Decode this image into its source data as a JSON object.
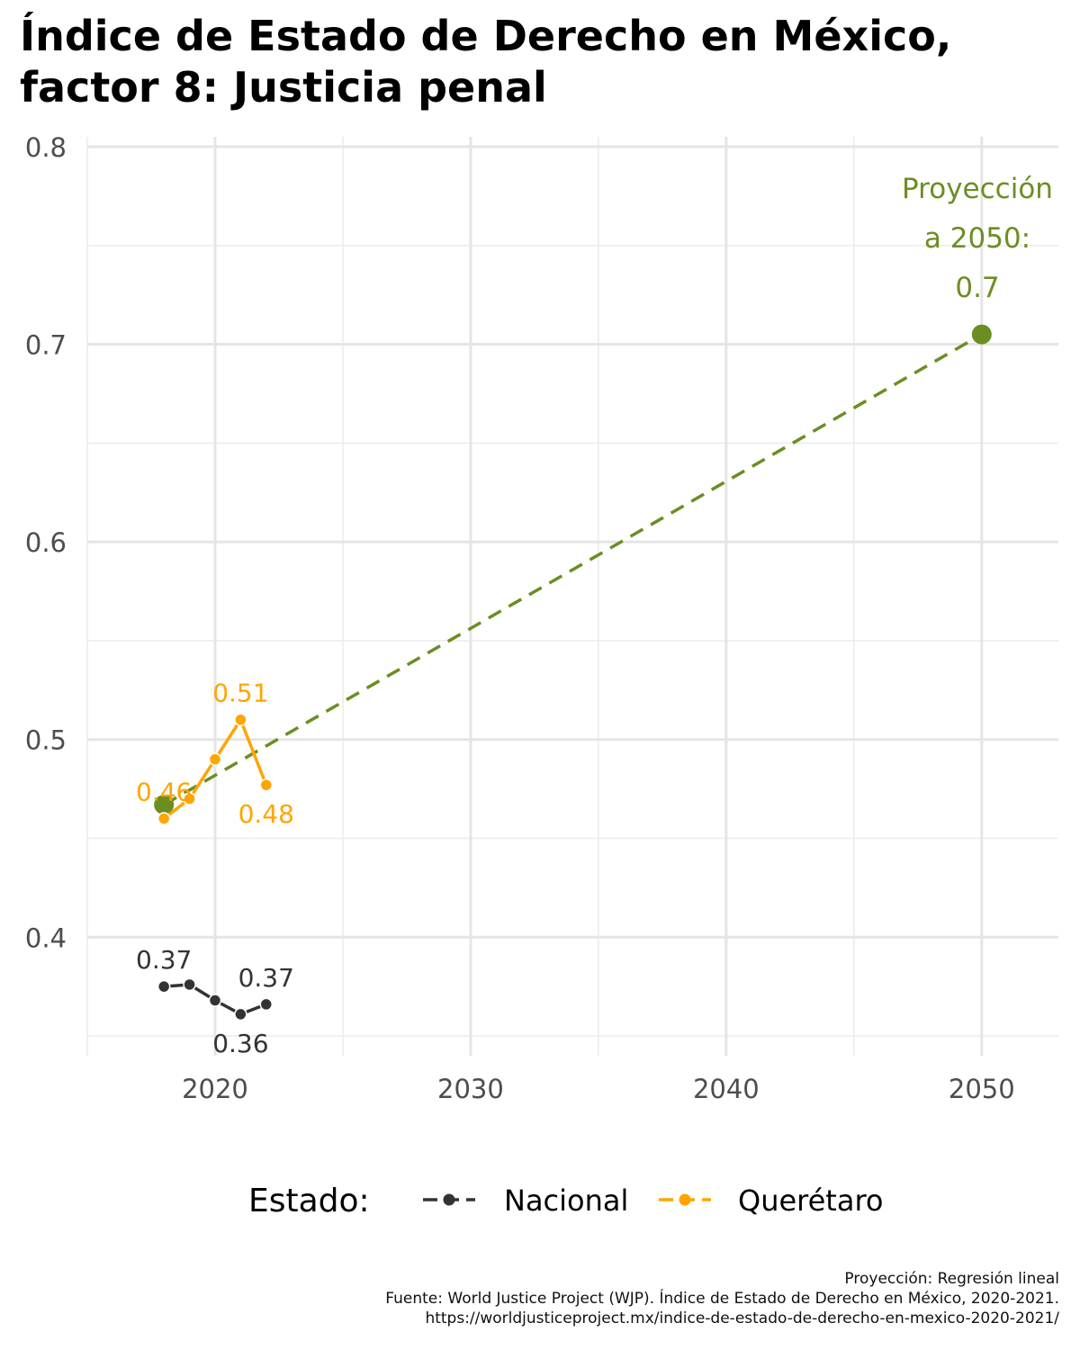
{
  "title_lines": [
    "Índice de Estado de Derecho en México,",
    "factor 8: Justicia penal"
  ],
  "chart_data": {
    "type": "line",
    "x": [
      2018,
      2019,
      2020,
      2021,
      2022
    ],
    "series": [
      {
        "name": "Nacional",
        "color": "#333333",
        "values": [
          0.375,
          0.376,
          0.368,
          0.361,
          0.366
        ]
      },
      {
        "name": "Querétaro",
        "color": "#FFA500",
        "values": [
          0.46,
          0.47,
          0.49,
          0.51,
          0.477
        ]
      }
    ],
    "projection": {
      "color": "#6B8E23",
      "line_style": "dashed",
      "points": [
        {
          "x": 2018,
          "y": 0.467
        },
        {
          "x": 2050,
          "y": 0.705
        }
      ],
      "annotation_lines": [
        "Proyección",
        "a 2050:",
        "0.7"
      ]
    },
    "data_labels": [
      {
        "series": "Nacional",
        "x": 2018,
        "text": "0.37",
        "position": "above"
      },
      {
        "series": "Nacional",
        "x": 2022,
        "text": "0.37",
        "position": "above"
      },
      {
        "series": "Nacional",
        "x": 2021,
        "text": "0.36",
        "position": "below"
      },
      {
        "series": "Querétaro",
        "x": 2018,
        "text": "0.46",
        "position": "above"
      },
      {
        "series": "Querétaro",
        "x": 2021,
        "text": "0.51",
        "position": "above"
      },
      {
        "series": "Querétaro",
        "x": 2022,
        "text": "0.48",
        "position": "below"
      }
    ],
    "xlim": [
      2015,
      2053
    ],
    "ylim": [
      0.34,
      0.805
    ],
    "x_ticks": [
      2020,
      2030,
      2040,
      2050
    ],
    "x_tick_labels": [
      "2020",
      "2030",
      "2040",
      "2050"
    ],
    "y_ticks": [
      0.4,
      0.5,
      0.6,
      0.7,
      0.8
    ],
    "y_tick_labels": [
      "0.4",
      "0.5",
      "0.6",
      "0.7",
      "0.8"
    ],
    "grid": true,
    "legend": {
      "title": "Estado:",
      "placement": "bottom"
    }
  },
  "caption_lines": [
    "Proyección: Regresión lineal",
    "Fuente: World Justice Project (WJP). Índice de Estado de Derecho en México, 2020-2021.",
    "https://worldjusticeproject.mx/indice-de-estado-de-derecho-en-mexico-2020-2021/"
  ]
}
